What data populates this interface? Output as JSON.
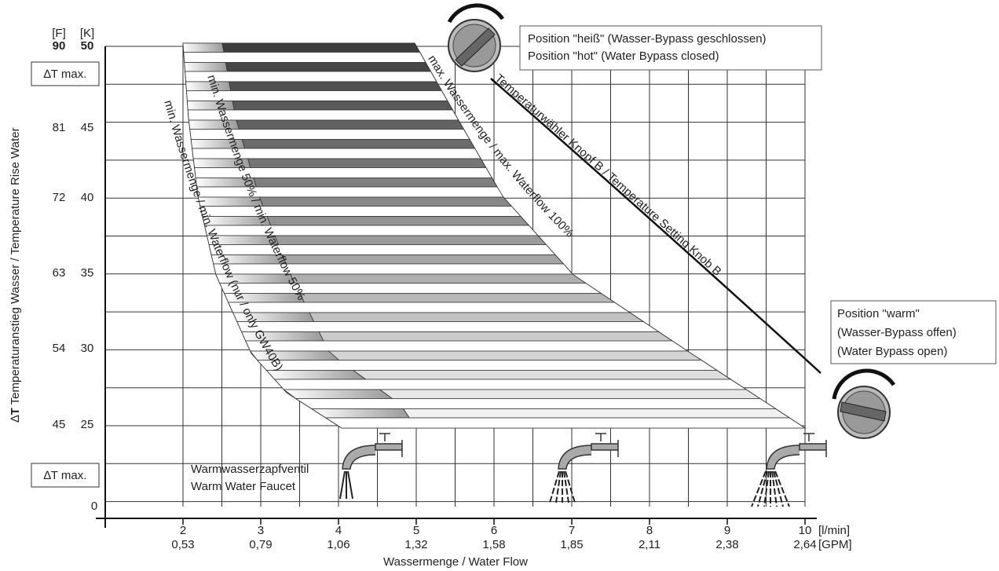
{
  "y_axis": {
    "title_symbol": "∆",
    "title_bold": "T",
    "title": "Temperaturanstieg Wasser / Temperature Rise Water",
    "unit_f": "[F]",
    "unit_k": "[K]",
    "ticks": [
      {
        "f": "90",
        "k": "50"
      },
      {
        "f": "81",
        "k": "45"
      },
      {
        "f": "72",
        "k": "40"
      },
      {
        "f": "63",
        "k": "35"
      },
      {
        "f": "54",
        "k": "30"
      },
      {
        "f": "45",
        "k": "25"
      }
    ],
    "delta_max_top": "∆T max.",
    "delta_max_bottom": "∆T max.",
    "zero": "0"
  },
  "x_axis": {
    "ticks": [
      {
        "lmin": "2",
        "gpm": "0,53"
      },
      {
        "lmin": "3",
        "gpm": "0,79"
      },
      {
        "lmin": "4",
        "gpm": "1,06"
      },
      {
        "lmin": "5",
        "gpm": "1,32"
      },
      {
        "lmin": "6",
        "gpm": "1,58"
      },
      {
        "lmin": "7",
        "gpm": "1,85"
      },
      {
        "lmin": "8",
        "gpm": "2,11"
      },
      {
        "lmin": "9",
        "gpm": "2,38"
      },
      {
        "lmin": "10",
        "gpm": "2,64"
      }
    ],
    "unit_lmin": "[l/min]",
    "unit_gpm": "[GPM]",
    "title": "Wassermenge / Water Flow"
  },
  "curves": {
    "max": "max. Wassermenge / max. Waterflow 100%",
    "half": "min. Wassermenge 50% / min. Waterflow 50%",
    "min": "min. Wassermenge / min. Waterflow (nur / only GW40B)",
    "knob": "Temperaturwähler Knopf B / Temperature Setting Knob B"
  },
  "boxes": {
    "hot": [
      "Position \"heiß\" (Wasser-Bypass geschlossen)",
      "Position \"hot\" (Water Bypass closed)"
    ],
    "warm": [
      "Position \"warm\"",
      "(Wasser-Bypass offen)",
      "(Water Bypass open)"
    ]
  },
  "faucet_label": [
    "Warmwasserzapfventil",
    "Warm Water Faucet"
  ]
}
